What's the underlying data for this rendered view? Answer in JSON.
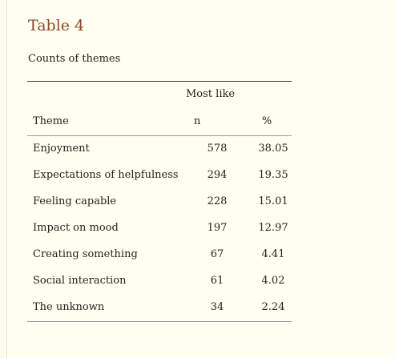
{
  "table": {
    "title": "Table 4",
    "caption": "Counts of themes",
    "group_header": "Most like",
    "headers": {
      "theme": "Theme",
      "n": "n",
      "pct": "%"
    },
    "rows": [
      {
        "theme": "Enjoyment",
        "n": "578",
        "pct": "38.05"
      },
      {
        "theme": "Expectations of helpfulness",
        "n": "294",
        "pct": "19.35"
      },
      {
        "theme": "Feeling capable",
        "n": "228",
        "pct": "15.01"
      },
      {
        "theme": "Impact on mood",
        "n": "197",
        "pct": "12.97"
      },
      {
        "theme": "Creating something",
        "n": "67",
        "pct": "4.41"
      },
      {
        "theme": "Social interaction",
        "n": "61",
        "pct": "4.02"
      },
      {
        "theme": "The unknown",
        "n": "34",
        "pct": "2.24"
      }
    ]
  }
}
